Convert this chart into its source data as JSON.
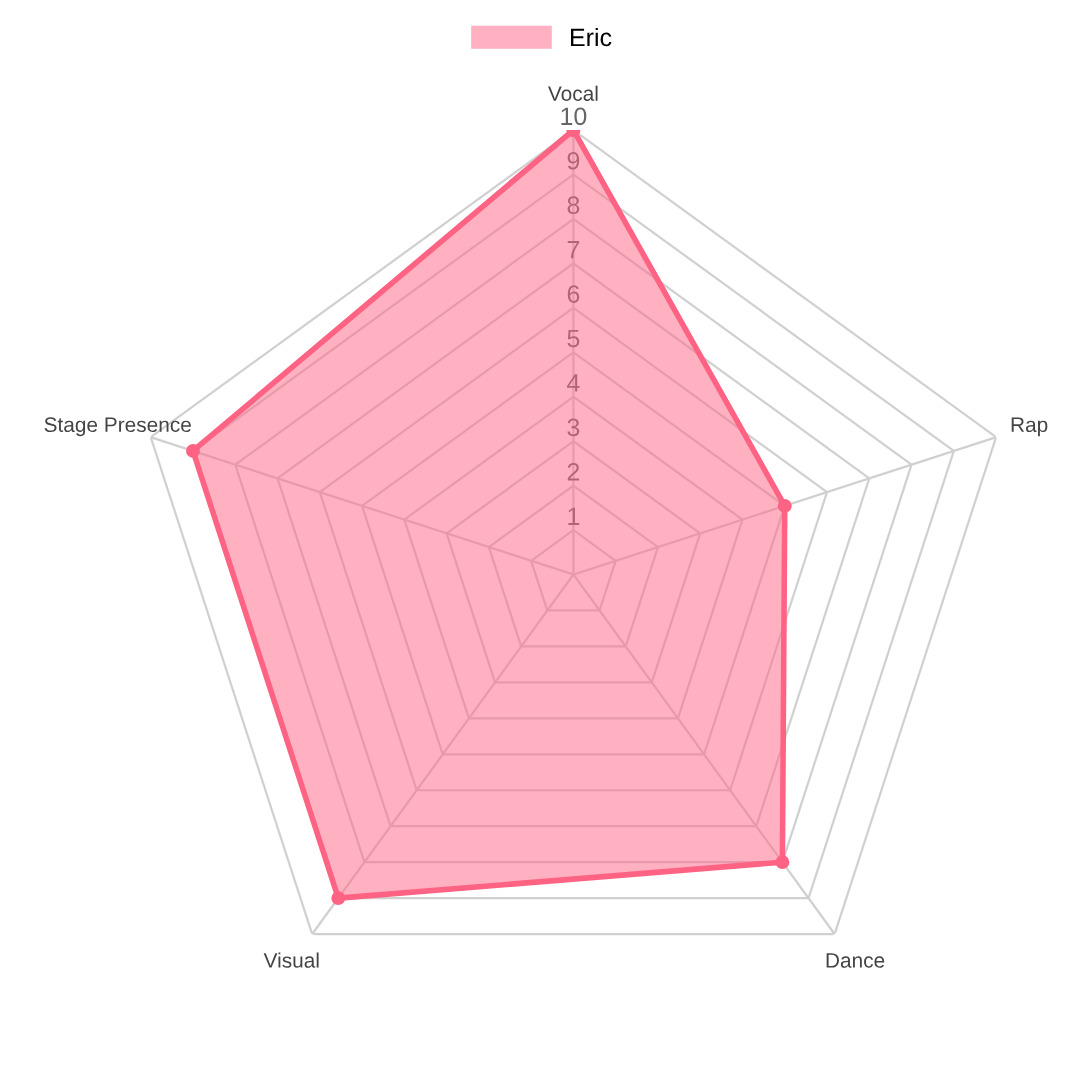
{
  "chart_data": {
    "type": "radar",
    "categories": [
      "Vocal",
      "Rap",
      "Dance",
      "Visual",
      "Stage Presence"
    ],
    "series": [
      {
        "name": "Eric",
        "color": "#ff6384",
        "values": [
          10,
          5,
          8,
          9,
          9
        ]
      }
    ],
    "ylim": [
      0,
      10
    ],
    "yticks": [
      1,
      2,
      3,
      4,
      5,
      6,
      7,
      8,
      9,
      10
    ],
    "grid": true,
    "legend": "top",
    "marker": "circle"
  }
}
